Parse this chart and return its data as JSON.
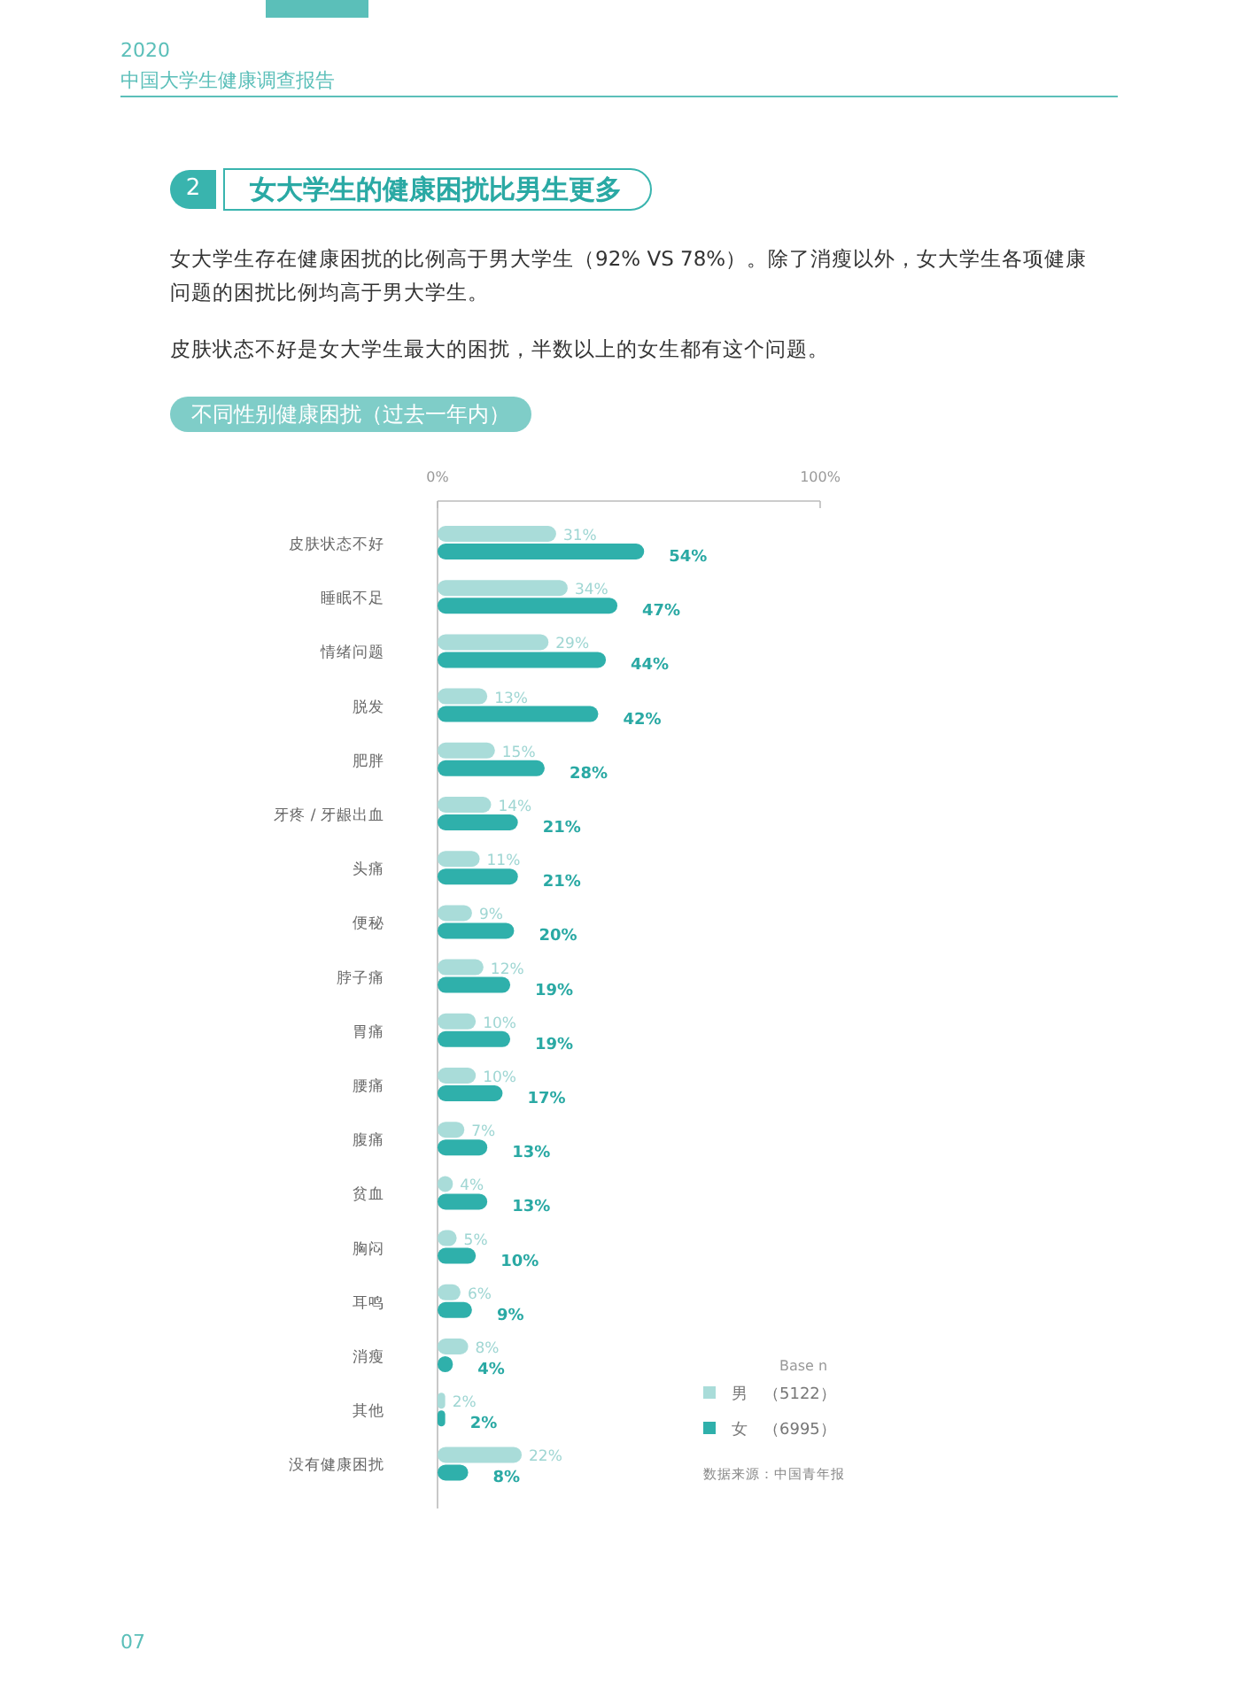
{
  "chart_data": {
    "type": "bar",
    "orientation": "horizontal",
    "title": "女大学生的健康困扰比男生更多",
    "subtitle": "不同性别健康困扰（过去一年内）",
    "annotations": [
      "2020",
      "中国大学生健康调查报告",
      "2",
      "女大学生存在健康困扰的比例高于男大学生（92% VS 78%）。除了消瘦以外，女大学生各项健康问题的困扰比例均高于男大学生。",
      "皮肤状态不好是女大学生最大的困扰，半数以上的女生都有这个问题。",
      "数据来源：中国青年报",
      "07"
    ],
    "categories": [
      "皮肤状态不好",
      "睡眠不足",
      "情绪问题",
      "脱发",
      "肥胖",
      "牙疼 / 牙龈出血",
      "头痛",
      "便秘",
      "脖子痛",
      "胃痛",
      "腰痛",
      "腹痛",
      "贫血",
      "胸闷",
      "耳鸣",
      "消瘦",
      "其他",
      "没有健康困扰"
    ],
    "xlim": [
      0,
      100
    ],
    "xticks": [
      {
        "value": 0,
        "label": "0%"
      },
      {
        "value": 100,
        "label": "100%"
      }
    ],
    "legend": "bottom right",
    "legend_title": "Base n",
    "series": [
      {
        "name": "男　（5122）",
        "color": "#a9dcd9",
        "values": [
          31,
          34,
          29,
          13,
          15,
          14,
          11,
          9,
          12,
          10,
          10,
          7,
          4,
          5,
          6,
          8,
          2,
          22
        ],
        "value_labels": [
          "31%",
          "34%",
          "29%",
          "13%",
          "15%",
          "14%",
          "11%",
          "9%",
          "12%",
          "10%",
          "10%",
          "7%",
          "4%",
          "5%",
          "6%",
          "8%",
          "2%",
          "22%"
        ]
      },
      {
        "name": "女　（6995）",
        "color": "#2fb0ab",
        "values": [
          54,
          47,
          44,
          42,
          28,
          21,
          21,
          20,
          19,
          19,
          17,
          13,
          13,
          10,
          9,
          4,
          2,
          8
        ],
        "value_labels": [
          "54%",
          "47%",
          "44%",
          "42%",
          "28%",
          "21%",
          "21%",
          "20%",
          "19%",
          "19%",
          "17%",
          "13%",
          "13%",
          "10%",
          "9%",
          "4%",
          "2%",
          "8%"
        ]
      }
    ]
  }
}
